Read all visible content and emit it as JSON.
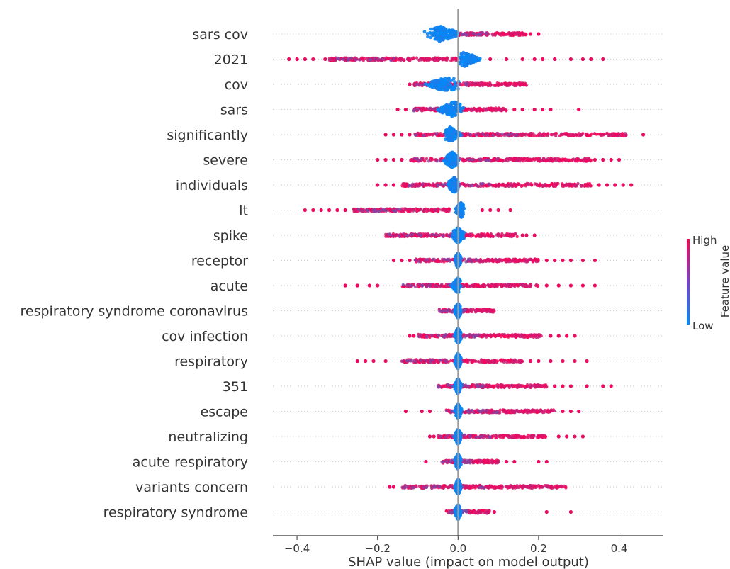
{
  "chart_data": {
    "type": "scatter",
    "subtype": "shap-beeswarm",
    "title": "",
    "xlabel": "SHAP value (impact on model output)",
    "ylabel": "",
    "xlim": [
      -0.46,
      0.51
    ],
    "xticks": [
      -0.4,
      -0.2,
      0.0,
      0.2,
      0.4
    ],
    "xtick_labels": [
      "−0.4",
      "−0.2",
      "0.0",
      "0.2",
      "0.4"
    ],
    "colorbar": {
      "title": "Feature value",
      "high_label": "High",
      "low_label": "Low",
      "high_color": "#ff0052",
      "low_color": "#008bfb"
    },
    "features": [
      {
        "name": "sars cov",
        "high": {
          "min": -0.02,
          "max": 0.17,
          "outliers": [
            0.18,
            0.2
          ]
        },
        "low": {
          "min": -0.09,
          "max": 0.01,
          "center": -0.045
        }
      },
      {
        "name": "2021",
        "high": {
          "min": -0.32,
          "max": 0.05,
          "outliers": [
            -0.42,
            -0.4,
            -0.38,
            -0.36,
            -0.33,
            0.08,
            0.12,
            0.16,
            0.19,
            0.21,
            0.24,
            0.28,
            0.31,
            0.33,
            0.36
          ]
        },
        "low": {
          "min": -0.01,
          "max": 0.06,
          "center": 0.015
        }
      },
      {
        "name": "cov",
        "high": {
          "min": -0.11,
          "max": 0.17,
          "outliers": [
            -0.12
          ]
        },
        "low": {
          "min": -0.09,
          "max": 0.01,
          "center": -0.025
        }
      },
      {
        "name": "sars",
        "high": {
          "min": -0.11,
          "max": 0.12,
          "outliers": [
            -0.15,
            -0.13,
            0.14,
            0.16,
            0.19,
            0.21,
            0.23,
            0.3
          ]
        },
        "low": {
          "min": -0.06,
          "max": 0.02,
          "center": -0.01
        }
      },
      {
        "name": "significantly",
        "high": {
          "min": -0.11,
          "max": 0.42,
          "outliers": [
            -0.18,
            -0.16,
            -0.14,
            -0.12,
            0.46
          ]
        },
        "low": {
          "min": -0.04,
          "max": 0.01,
          "center": -0.02
        }
      },
      {
        "name": "severe",
        "high": {
          "min": -0.12,
          "max": 0.33,
          "outliers": [
            -0.2,
            -0.18,
            -0.16,
            -0.14,
            0.34,
            0.36,
            0.38,
            0.4
          ]
        },
        "low": {
          "min": -0.04,
          "max": 0.01,
          "center": -0.015
        }
      },
      {
        "name": "individuals",
        "high": {
          "min": -0.14,
          "max": 0.33,
          "outliers": [
            -0.2,
            -0.18,
            -0.16,
            0.35,
            0.37,
            0.39,
            0.41,
            0.43
          ]
        },
        "low": {
          "min": -0.03,
          "max": 0.01,
          "center": -0.01
        }
      },
      {
        "name": "lt",
        "high": {
          "min": -0.26,
          "max": -0.02,
          "outliers": [
            -0.38,
            -0.36,
            -0.34,
            -0.32,
            -0.3,
            -0.28,
            0.06,
            0.08,
            0.1,
            0.13
          ]
        },
        "low": {
          "min": -0.01,
          "max": 0.02,
          "center": 0.008
        }
      },
      {
        "name": "spike",
        "high": {
          "min": -0.18,
          "max": 0.15,
          "outliers": [
            0.16,
            0.17,
            0.19
          ]
        },
        "low": {
          "min": -0.02,
          "max": 0.02,
          "center": 0.0
        }
      },
      {
        "name": "receptor",
        "high": {
          "min": -0.11,
          "max": 0.2,
          "outliers": [
            -0.16,
            -0.14,
            -0.12,
            0.22,
            0.24,
            0.26,
            0.28,
            0.31,
            0.34
          ]
        },
        "low": {
          "min": -0.01,
          "max": 0.01,
          "center": 0.0
        }
      },
      {
        "name": "acute",
        "high": {
          "min": -0.14,
          "max": 0.2,
          "outliers": [
            -0.28,
            -0.25,
            -0.22,
            -0.2,
            0.22,
            0.25,
            0.28,
            0.31,
            0.34
          ]
        },
        "low": {
          "min": -0.02,
          "max": 0.01,
          "center": 0.0
        }
      },
      {
        "name": "respiratory syndrome coronavirus",
        "high": {
          "min": -0.05,
          "max": 0.09,
          "outliers": []
        },
        "low": {
          "min": -0.01,
          "max": 0.01,
          "center": 0.0
        }
      },
      {
        "name": "cov infection",
        "high": {
          "min": -0.1,
          "max": 0.21,
          "outliers": [
            -0.12,
            -0.11,
            0.23,
            0.25,
            0.27,
            0.29
          ]
        },
        "low": {
          "min": -0.01,
          "max": 0.01,
          "center": 0.0
        }
      },
      {
        "name": "respiratory",
        "high": {
          "min": -0.14,
          "max": 0.16,
          "outliers": [
            -0.25,
            -0.23,
            -0.21,
            -0.18,
            0.18,
            0.2,
            0.23,
            0.26,
            0.29,
            0.32
          ]
        },
        "low": {
          "min": -0.01,
          "max": 0.01,
          "center": 0.0
        }
      },
      {
        "name": "351",
        "high": {
          "min": -0.05,
          "max": 0.22,
          "outliers": [
            0.24,
            0.26,
            0.28,
            0.32,
            0.36,
            0.38
          ]
        },
        "low": {
          "min": -0.01,
          "max": 0.01,
          "center": 0.0
        }
      },
      {
        "name": "escape",
        "high": {
          "min": -0.03,
          "max": 0.24,
          "outliers": [
            -0.13,
            -0.09,
            -0.07,
            0.26,
            0.28,
            0.3
          ]
        },
        "low": {
          "min": -0.01,
          "max": 0.01,
          "center": 0.0
        }
      },
      {
        "name": "neutralizing",
        "high": {
          "min": -0.05,
          "max": 0.22,
          "outliers": [
            -0.07,
            -0.06,
            0.25,
            0.27,
            0.29,
            0.31
          ]
        },
        "low": {
          "min": -0.01,
          "max": 0.01,
          "center": 0.0
        }
      },
      {
        "name": "acute respiratory",
        "high": {
          "min": -0.04,
          "max": 0.1,
          "outliers": [
            -0.08,
            0.12,
            0.14,
            0.2,
            0.22
          ]
        },
        "low": {
          "min": -0.01,
          "max": 0.01,
          "center": 0.0
        }
      },
      {
        "name": "variants concern",
        "high": {
          "min": -0.14,
          "max": 0.27,
          "outliers": [
            -0.17,
            -0.16
          ]
        },
        "low": {
          "min": -0.01,
          "max": 0.01,
          "center": 0.0
        }
      },
      {
        "name": "respiratory syndrome",
        "high": {
          "min": -0.03,
          "max": 0.08,
          "outliers": [
            0.09,
            0.22,
            0.28
          ]
        },
        "low": {
          "min": -0.01,
          "max": 0.01,
          "center": 0.0
        }
      }
    ]
  }
}
